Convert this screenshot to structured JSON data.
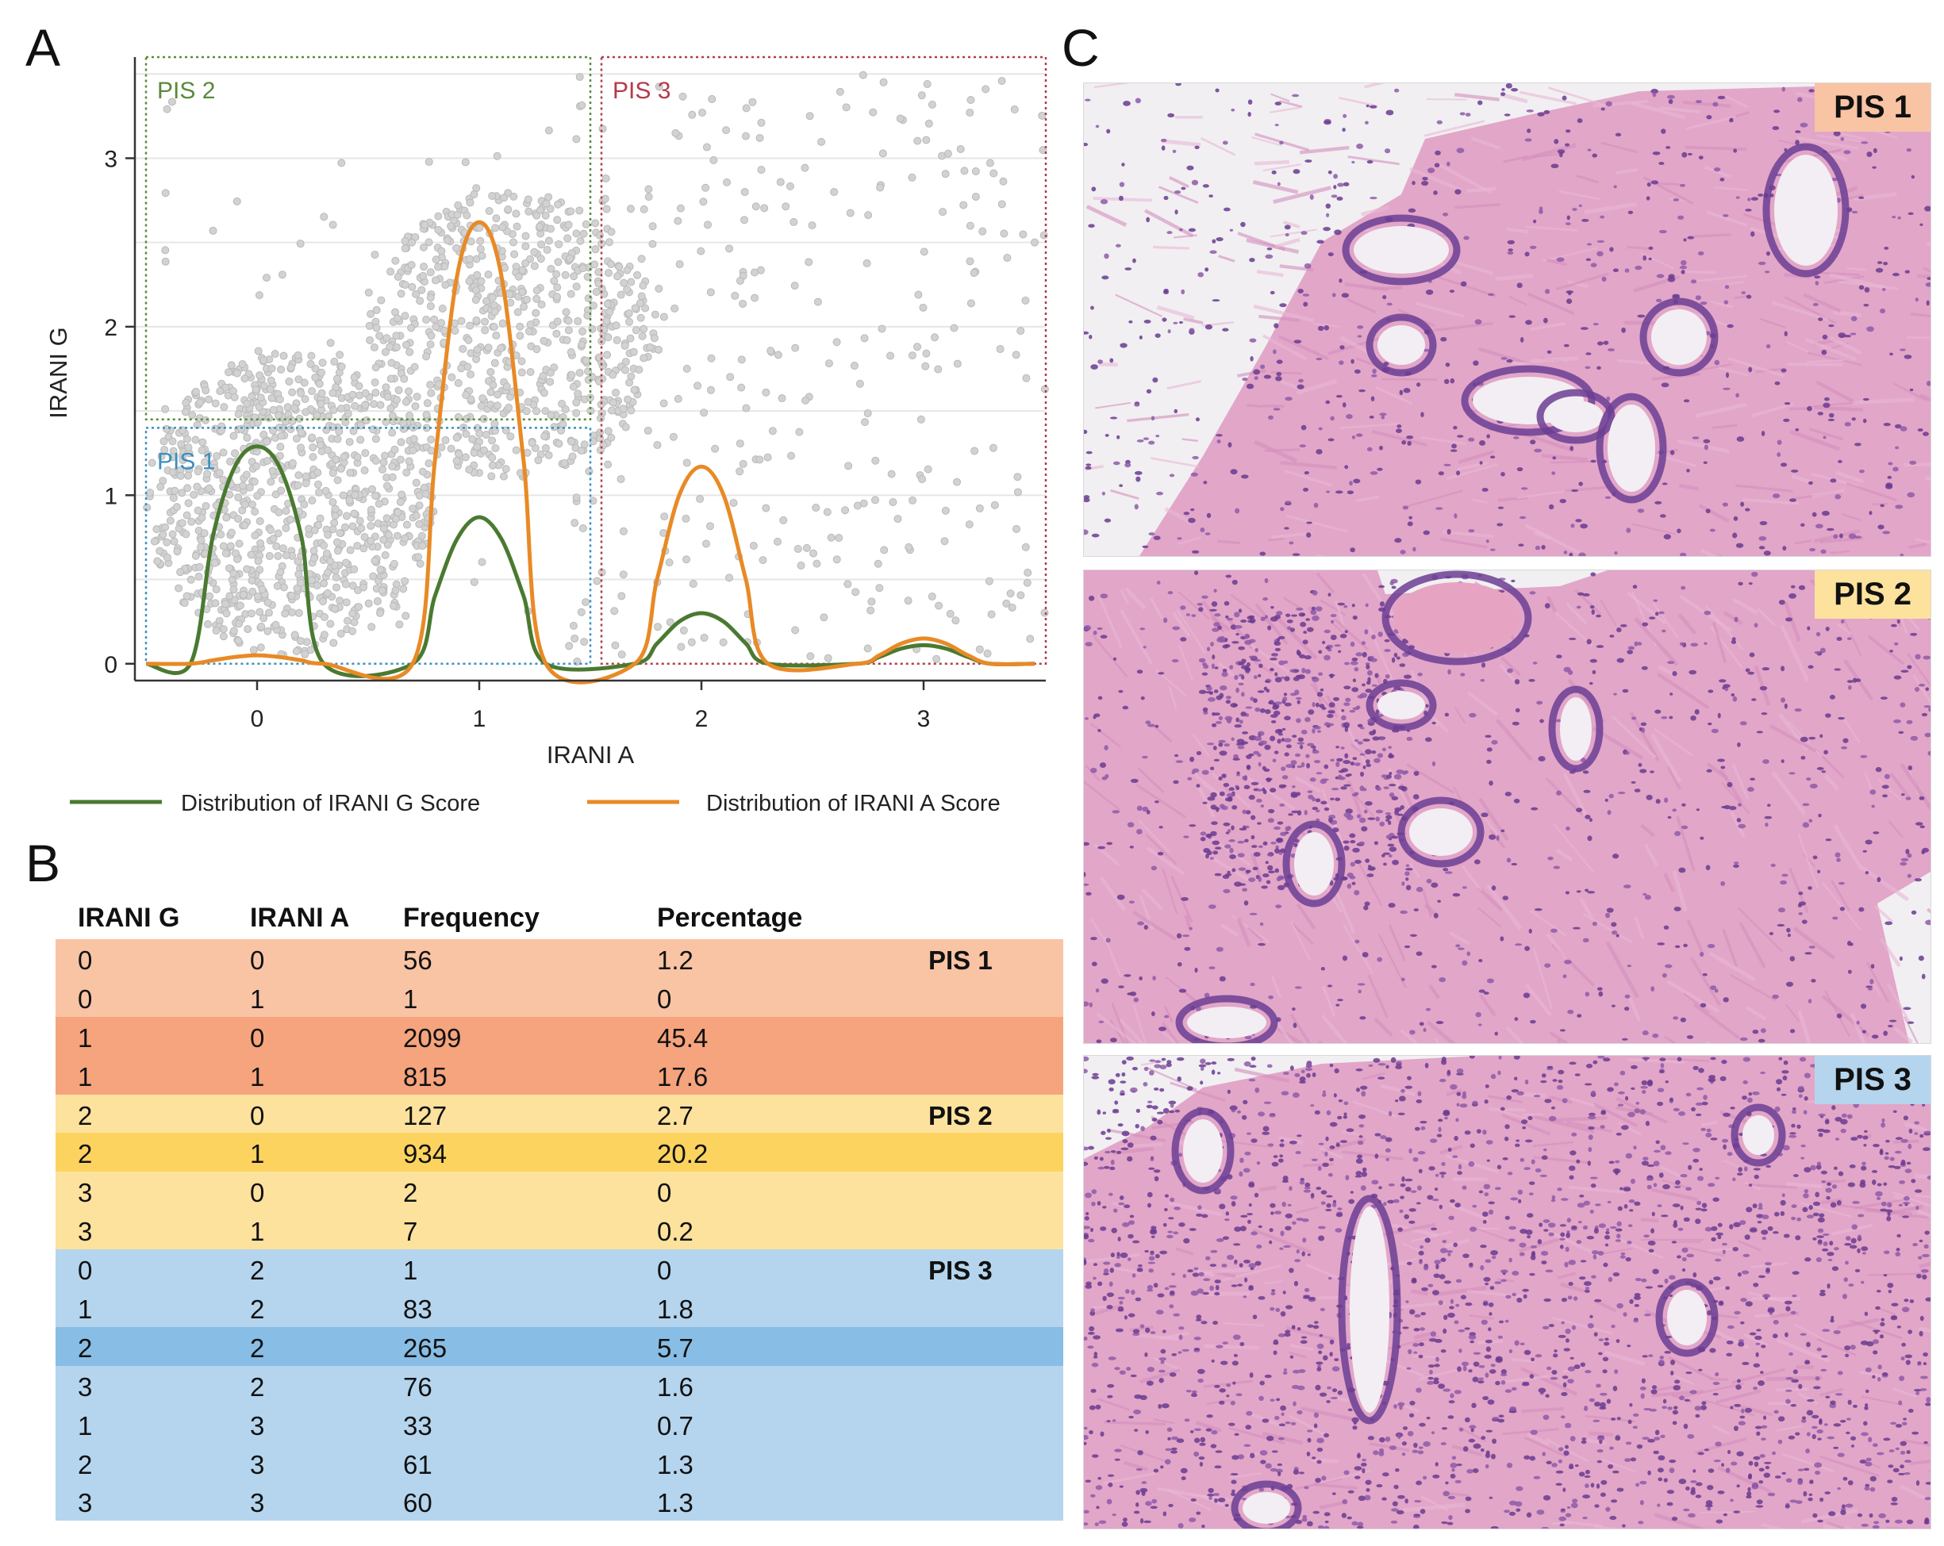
{
  "panels": {
    "a": "A",
    "b": "B",
    "c": "C"
  },
  "chart_data": {
    "type": "scatter",
    "xlabel": "IRANI A",
    "ylabel": "IRANI G",
    "xlim": [
      -0.55,
      3.55
    ],
    "ylim": [
      -0.1,
      3.6
    ],
    "x_ticks": [
      "0",
      "1",
      "2",
      "3"
    ],
    "y_ticks": [
      "0",
      "1",
      "2",
      "3"
    ],
    "regions": [
      {
        "name": "PIS 1",
        "x": [
          -0.5,
          1.5
        ],
        "y": [
          0,
          1.4
        ],
        "color": "#3a8fbf"
      },
      {
        "name": "PIS 2",
        "x": [
          -0.5,
          1.5
        ],
        "y": [
          1.45,
          3.6
        ],
        "color": "#5a8a3a"
      },
      {
        "name": "PIS 3",
        "x": [
          1.55,
          3.55
        ],
        "y": [
          0,
          3.6
        ],
        "color": "#b53a4a"
      }
    ],
    "series": [
      {
        "name": "Distribution of IRANI G Score",
        "color": "#4a7a30",
        "x": [
          -0.5,
          -0.3,
          -0.2,
          -0.1,
          0,
          0.1,
          0.2,
          0.3,
          0.7,
          0.8,
          0.9,
          1.0,
          1.1,
          1.2,
          1.3,
          1.7,
          1.8,
          1.9,
          2.0,
          2.1,
          2.2,
          2.3,
          2.7,
          2.8,
          2.9,
          3.0,
          3.1,
          3.2,
          3.3,
          3.5
        ],
        "values": [
          0,
          0,
          0.75,
          1.17,
          1.29,
          1.17,
          0.75,
          0,
          0,
          0.4,
          0.74,
          0.87,
          0.74,
          0.4,
          0,
          0,
          0.12,
          0.25,
          0.3,
          0.25,
          0.12,
          0,
          0,
          0.04,
          0.09,
          0.11,
          0.09,
          0.04,
          0,
          0
        ]
      },
      {
        "name": "Distribution of IRANI A Score",
        "color": "#e88a26",
        "x": [
          -0.5,
          -0.3,
          -0.2,
          -0.1,
          0,
          0.1,
          0.2,
          0.3,
          0.7,
          0.8,
          0.9,
          1.0,
          1.1,
          1.2,
          1.3,
          1.7,
          1.8,
          1.9,
          2.0,
          2.1,
          2.2,
          2.3,
          2.7,
          2.8,
          2.9,
          3.0,
          3.1,
          3.2,
          3.3,
          3.5
        ],
        "values": [
          0,
          0,
          0.02,
          0.04,
          0.05,
          0.04,
          0.02,
          0,
          0,
          1.2,
          2.3,
          2.62,
          2.3,
          1.2,
          0,
          0,
          0.5,
          1.0,
          1.17,
          1.0,
          0.5,
          0,
          0,
          0.05,
          0.12,
          0.15,
          0.12,
          0.05,
          0,
          0
        ]
      }
    ]
  },
  "table": {
    "headers": [
      "IRANI G",
      "IRANI A",
      "Frequency",
      "Percentage"
    ],
    "rows": [
      {
        "g": "0",
        "a": "0",
        "freq": "56",
        "pct": "1.2",
        "tag": "PIS 1",
        "color": "#f9c4a4"
      },
      {
        "g": "0",
        "a": "1",
        "freq": "1",
        "pct": "0",
        "tag": "",
        "color": "#f9c4a4"
      },
      {
        "g": "1",
        "a": "0",
        "freq": "2099",
        "pct": "45.4",
        "tag": "",
        "color": "#f5a47d"
      },
      {
        "g": "1",
        "a": "1",
        "freq": "815",
        "pct": "17.6",
        "tag": "",
        "color": "#f5a47d"
      },
      {
        "g": "2",
        "a": "0",
        "freq": "127",
        "pct": "2.7",
        "tag": "PIS 2",
        "color": "#fde29e"
      },
      {
        "g": "2",
        "a": "1",
        "freq": "934",
        "pct": "20.2",
        "tag": "",
        "color": "#fdd360"
      },
      {
        "g": "3",
        "a": "0",
        "freq": "2",
        "pct": "0",
        "tag": "",
        "color": "#fde29e"
      },
      {
        "g": "3",
        "a": "1",
        "freq": "7",
        "pct": "0.2",
        "tag": "",
        "color": "#fde29e"
      },
      {
        "g": "0",
        "a": "2",
        "freq": "1",
        "pct": "0",
        "tag": "PIS 3",
        "color": "#b5d5ee"
      },
      {
        "g": "1",
        "a": "2",
        "freq": "83",
        "pct": "1.8",
        "tag": "",
        "color": "#b5d5ee"
      },
      {
        "g": "2",
        "a": "2",
        "freq": "265",
        "pct": "5.7",
        "tag": "",
        "color": "#88bde5"
      },
      {
        "g": "3",
        "a": "2",
        "freq": "76",
        "pct": "1.6",
        "tag": "",
        "color": "#b5d5ee"
      },
      {
        "g": "1",
        "a": "3",
        "freq": "33",
        "pct": "0.7",
        "tag": "",
        "color": "#b5d5ee"
      },
      {
        "g": "2",
        "a": "3",
        "freq": "61",
        "pct": "1.3",
        "tag": "",
        "color": "#b5d5ee"
      },
      {
        "g": "3",
        "a": "3",
        "freq": "60",
        "pct": "1.3",
        "tag": "",
        "color": "#b5d5ee"
      }
    ]
  },
  "histology": [
    {
      "label": "PIS 1",
      "label_color": "#f9c4a4"
    },
    {
      "label": "PIS 2",
      "label_color": "#fde29e"
    },
    {
      "label": "PIS 3",
      "label_color": "#b5d5ee"
    }
  ]
}
